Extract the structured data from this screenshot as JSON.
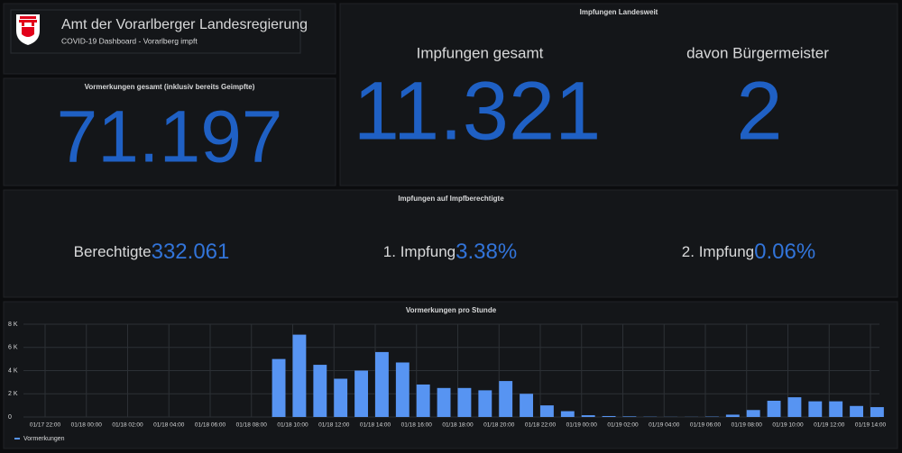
{
  "header": {
    "title": "Amt der Vorarlberger Landesregierung",
    "subtitle": "COVID-19 Dashboard - Vorarlberg impft"
  },
  "vormerkungen": {
    "title": "Vormerkungen gesamt (inklusiv bereits Geimpfte)",
    "value": "71.197"
  },
  "impfungen": {
    "title": "Impfungen Landesweit",
    "stats": [
      {
        "label": "Impfungen gesamt",
        "value": "11.321"
      },
      {
        "label": "davon Bürgermeister",
        "value": "2"
      }
    ]
  },
  "berechtigte": {
    "title": "Impfungen auf Impfberechtigte",
    "stats": [
      {
        "label": "Berechtigte",
        "value": "332.061"
      },
      {
        "label": "1. Impfung",
        "value": "3.38%"
      },
      {
        "label": "2. Impfung",
        "value": "0.06%"
      }
    ]
  },
  "chart_data": {
    "type": "bar",
    "title": "Vormerkungen pro Stunde",
    "categories": [
      "01/17 22:00",
      null,
      "01/18 00:00",
      null,
      "01/18 02:00",
      null,
      "01/18 04:00",
      null,
      "01/18 06:00",
      null,
      "01/18 08:00",
      null,
      "01/18 10:00",
      null,
      "01/18 12:00",
      null,
      "01/18 14:00",
      null,
      "01/18 16:00",
      null,
      "01/18 18:00",
      null,
      "01/18 20:00",
      null,
      "01/18 22:00",
      null,
      "01/19 00:00",
      null,
      "01/19 02:00",
      null,
      "01/19 04:00",
      null,
      "01/19 06:00",
      null,
      "01/19 08:00",
      null,
      "01/19 10:00",
      null,
      "01/19 12:00",
      null,
      "01/19 14:00"
    ],
    "series": [
      {
        "name": "Vormerkungen",
        "color": "#5794f2",
        "values": [
          0,
          0,
          0,
          0,
          0,
          0,
          0,
          0,
          0,
          0,
          0,
          5000,
          7100,
          4500,
          3300,
          4000,
          5600,
          4700,
          2800,
          2500,
          2500,
          2300,
          3100,
          2000,
          1000,
          500,
          150,
          80,
          50,
          20,
          10,
          10,
          30,
          200,
          600,
          1400,
          1700,
          1350,
          1350,
          950,
          850
        ]
      }
    ],
    "ylim": [
      0,
      8000
    ],
    "yticks": [
      0,
      {
        "value": 2000,
        "label": "2 K"
      },
      {
        "value": 4000,
        "label": "4 K"
      },
      {
        "value": 6000,
        "label": "6 K"
      },
      {
        "value": 8000,
        "label": "8 K"
      }
    ],
    "grid": true,
    "legend": "bottom-left"
  }
}
